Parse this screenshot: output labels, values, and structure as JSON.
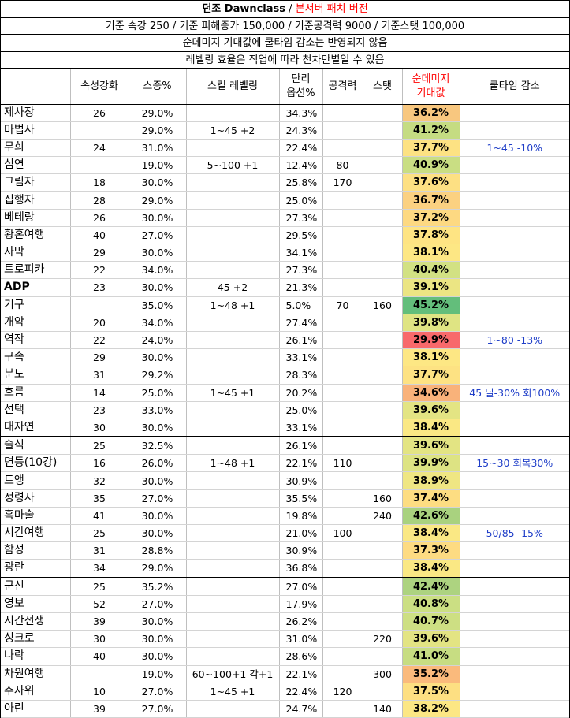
{
  "header": {
    "title_main": "던조 Dawnclass",
    "title_sep": " / ",
    "title_patch": "본서버 패치 버전",
    "baseline": "기준 속강 250 / 기준 피해증가 150,000 / 기준공격력 9000 / 기준스탯 100,000",
    "note1": "순데미지 기대값에 쿨타임 감소는 반영되지 않음",
    "note2": "레벨링 효율은 직업에 따라 천차만별일 수 있음"
  },
  "columns": {
    "name": "",
    "elemental": "속성강화",
    "skill_pct": "스증%",
    "skill_level": "스킬 레벨링",
    "single_line1": "단리",
    "single_line2": "옵션%",
    "attack": "공격력",
    "stat": "스탯",
    "expected_line1": "순데미지",
    "expected_line2": "기대값",
    "cooldown": "쿨타임 감소"
  },
  "rows": [
    {
      "name": "제사장",
      "elem": "26",
      "skill": "29.0%",
      "level": "",
      "single": "34.3%",
      "atk": "",
      "stat": "",
      "exp": "36.2%",
      "cd": "",
      "color": "#f8c77f",
      "bold": false,
      "sep": false
    },
    {
      "name": "마법사",
      "elem": "",
      "skill": "29.0%",
      "level": "1~45 +2",
      "single": "24.3%",
      "atk": "",
      "stat": "",
      "exp": "41.2%",
      "cd": "",
      "color": "#c5dc82",
      "bold": false,
      "sep": false
    },
    {
      "name": "무희",
      "elem": "24",
      "skill": "31.0%",
      "level": "",
      "single": "22.4%",
      "atk": "",
      "stat": "",
      "exp": "37.7%",
      "cd": "1~45 -10%",
      "color": "#fde283",
      "bold": false,
      "sep": false
    },
    {
      "name": "심연",
      "elem": "",
      "skill": "19.0%",
      "level": "5~100 +1",
      "single": "12.4%",
      "atk": "80",
      "stat": "",
      "exp": "40.9%",
      "cd": "",
      "color": "#c9de83",
      "bold": false,
      "sep": false
    },
    {
      "name": "그림자",
      "elem": "18",
      "skill": "30.0%",
      "level": "",
      "single": "25.8%",
      "atk": "170",
      "stat": "",
      "exp": "37.6%",
      "cd": "",
      "color": "#fde083",
      "bold": false,
      "sep": false
    },
    {
      "name": "집행자",
      "elem": "28",
      "skill": "29.0%",
      "level": "",
      "single": "25.0%",
      "atk": "",
      "stat": "",
      "exp": "36.7%",
      "cd": "",
      "color": "#fbd181",
      "bold": false,
      "sep": false
    },
    {
      "name": "베테랑",
      "elem": "26",
      "skill": "30.0%",
      "level": "",
      "single": "27.3%",
      "atk": "",
      "stat": "",
      "exp": "37.2%",
      "cd": "",
      "color": "#fdd982",
      "bold": false,
      "sep": false
    },
    {
      "name": "황혼여행",
      "elem": "40",
      "skill": "27.0%",
      "level": "",
      "single": "29.5%",
      "atk": "",
      "stat": "",
      "exp": "37.8%",
      "cd": "",
      "color": "#fee483",
      "bold": false,
      "sep": false
    },
    {
      "name": "사막",
      "elem": "29",
      "skill": "30.0%",
      "level": "",
      "single": "34.1%",
      "atk": "",
      "stat": "",
      "exp": "38.1%",
      "cd": "",
      "color": "#fde784",
      "bold": false,
      "sep": false
    },
    {
      "name": "트로피카",
      "elem": "22",
      "skill": "34.0%",
      "level": "",
      "single": "27.3%",
      "atk": "",
      "stat": "",
      "exp": "40.4%",
      "cd": "",
      "color": "#d2e183",
      "bold": false,
      "sep": false
    },
    {
      "name": "ADP",
      "elem": "23",
      "skill": "30.0%",
      "level": "45 +2",
      "single": "21.3%",
      "atk": "",
      "stat": "",
      "exp": "39.1%",
      "cd": "",
      "color": "#ebe583",
      "bold": true,
      "sep": false
    },
    {
      "name": "기구",
      "elem": "",
      "skill": "35.0%",
      "level": "1~48 +1",
      "single": "5.0%",
      "atk": "70",
      "stat": "160",
      "exp": "45.2%",
      "cd": "",
      "color": "#63be7b",
      "bold": false,
      "sep": false
    },
    {
      "name": "개악",
      "elem": "20",
      "skill": "34.0%",
      "level": "",
      "single": "27.4%",
      "atk": "",
      "stat": "",
      "exp": "39.8%",
      "cd": "",
      "color": "#dfe483",
      "bold": false,
      "sep": false
    },
    {
      "name": "역작",
      "elem": "22",
      "skill": "24.0%",
      "level": "",
      "single": "26.1%",
      "atk": "",
      "stat": "",
      "exp": "29.9%",
      "cd": "1~80 -13%",
      "color": "#f8696b",
      "bold": false,
      "sep": false
    },
    {
      "name": "구속",
      "elem": "29",
      "skill": "30.0%",
      "level": "",
      "single": "33.1%",
      "atk": "",
      "stat": "",
      "exp": "38.1%",
      "cd": "",
      "color": "#fde784",
      "bold": false,
      "sep": false
    },
    {
      "name": "분노",
      "elem": "31",
      "skill": "29.2%",
      "level": "",
      "single": "28.3%",
      "atk": "",
      "stat": "",
      "exp": "37.7%",
      "cd": "",
      "color": "#fde283",
      "bold": false,
      "sep": false
    },
    {
      "name": "흐름",
      "elem": "14",
      "skill": "25.0%",
      "level": "1~45 +1",
      "single": "20.2%",
      "atk": "",
      "stat": "",
      "exp": "34.6%",
      "cd": "45 딜-30% 회100%",
      "color": "#f9b27a",
      "bold": false,
      "sep": false
    },
    {
      "name": "선택",
      "elem": "23",
      "skill": "33.0%",
      "level": "",
      "single": "25.0%",
      "atk": "",
      "stat": "",
      "exp": "39.6%",
      "cd": "",
      "color": "#e3e483",
      "bold": false,
      "sep": false
    },
    {
      "name": "대자연",
      "elem": "30",
      "skill": "30.0%",
      "level": "",
      "single": "33.1%",
      "atk": "",
      "stat": "",
      "exp": "38.4%",
      "cd": "",
      "color": "#fae884",
      "bold": false,
      "sep": false
    },
    {
      "name": "술식",
      "elem": "25",
      "skill": "32.5%",
      "level": "",
      "single": "26.1%",
      "atk": "",
      "stat": "",
      "exp": "39.6%",
      "cd": "",
      "color": "#e3e483",
      "bold": false,
      "sep": true
    },
    {
      "name": "면등(10강)",
      "elem": "16",
      "skill": "26.0%",
      "level": "1~48 +1",
      "single": "22.1%",
      "atk": "110",
      "stat": "",
      "exp": "39.9%",
      "cd": "15~30 회복30%",
      "color": "#dde383",
      "bold": false,
      "sep": false
    },
    {
      "name": "트앵",
      "elem": "32",
      "skill": "30.0%",
      "level": "",
      "single": "30.9%",
      "atk": "",
      "stat": "",
      "exp": "38.9%",
      "cd": "",
      "color": "#efe683",
      "bold": false,
      "sep": false
    },
    {
      "name": "정령사",
      "elem": "35",
      "skill": "27.0%",
      "level": "",
      "single": "35.5%",
      "atk": "",
      "stat": "160",
      "exp": "37.4%",
      "cd": "",
      "color": "#fddd82",
      "bold": false,
      "sep": false
    },
    {
      "name": "흑마술",
      "elem": "41",
      "skill": "30.0%",
      "level": "",
      "single": "19.8%",
      "atk": "",
      "stat": "240",
      "exp": "42.6%",
      "cd": "",
      "color": "#a9d27f",
      "bold": false,
      "sep": false
    },
    {
      "name": "시간여행",
      "elem": "25",
      "skill": "30.0%",
      "level": "",
      "single": "21.0%",
      "atk": "100",
      "stat": "",
      "exp": "38.4%",
      "cd": "50/85 -15%",
      "color": "#fae884",
      "bold": false,
      "sep": false
    },
    {
      "name": "함성",
      "elem": "31",
      "skill": "28.8%",
      "level": "",
      "single": "30.9%",
      "atk": "",
      "stat": "",
      "exp": "37.3%",
      "cd": "",
      "color": "#fddb82",
      "bold": false,
      "sep": false
    },
    {
      "name": "광란",
      "elem": "34",
      "skill": "29.0%",
      "level": "",
      "single": "36.8%",
      "atk": "",
      "stat": "",
      "exp": "38.4%",
      "cd": "",
      "color": "#fae884",
      "bold": false,
      "sep": false
    },
    {
      "name": "군신",
      "elem": "25",
      "skill": "35.2%",
      "level": "",
      "single": "27.0%",
      "atk": "",
      "stat": "",
      "exp": "42.4%",
      "cd": "",
      "color": "#add380",
      "bold": false,
      "sep": true
    },
    {
      "name": "영보",
      "elem": "52",
      "skill": "27.0%",
      "level": "",
      "single": "17.9%",
      "atk": "",
      "stat": "",
      "exp": "40.8%",
      "cd": "",
      "color": "#cbdf83",
      "bold": false,
      "sep": false
    },
    {
      "name": "시간전쟁",
      "elem": "39",
      "skill": "30.0%",
      "level": "",
      "single": "26.2%",
      "atk": "",
      "stat": "",
      "exp": "40.7%",
      "cd": "",
      "color": "#cddf83",
      "bold": false,
      "sep": false
    },
    {
      "name": "싱크로",
      "elem": "30",
      "skill": "30.0%",
      "level": "",
      "single": "31.0%",
      "atk": "",
      "stat": "220",
      "exp": "39.6%",
      "cd": "",
      "color": "#e3e483",
      "bold": false,
      "sep": false
    },
    {
      "name": "나락",
      "elem": "40",
      "skill": "30.0%",
      "level": "",
      "single": "28.6%",
      "atk": "",
      "stat": "",
      "exp": "41.0%",
      "cd": "",
      "color": "#c7dd82",
      "bold": false,
      "sep": false
    },
    {
      "name": "차원여행",
      "elem": "",
      "skill": "19.0%",
      "level": "60~100+1 각+1",
      "single": "22.1%",
      "atk": "",
      "stat": "300",
      "exp": "35.2%",
      "cd": "",
      "color": "#faba7c",
      "bold": false,
      "sep": false
    },
    {
      "name": "주사위",
      "elem": "10",
      "skill": "27.0%",
      "level": "1~45 +1",
      "single": "22.4%",
      "atk": "120",
      "stat": "",
      "exp": "37.5%",
      "cd": "",
      "color": "#fddf82",
      "bold": false,
      "sep": false
    },
    {
      "name": "아린",
      "elem": "39",
      "skill": "27.0%",
      "level": "",
      "single": "24.7%",
      "atk": "",
      "stat": "140",
      "exp": "38.2%",
      "cd": "",
      "color": "#fce784",
      "bold": false,
      "sep": false
    }
  ]
}
